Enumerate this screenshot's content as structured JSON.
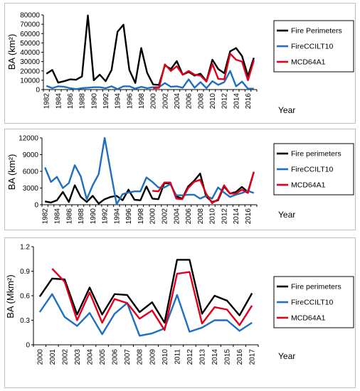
{
  "chart_data": [
    {
      "type": "line",
      "ylabel": "BA (km²)",
      "xlabel": "Year",
      "ylim": [
        0,
        80000
      ],
      "yticks": [
        0,
        10000,
        20000,
        30000,
        40000,
        50000,
        60000,
        70000,
        80000
      ],
      "ytick_labels": [
        "0",
        "10000",
        "20000",
        "30000",
        "40000",
        "50000",
        "60000",
        "70000",
        "80000"
      ],
      "xtick_labels": [
        "1982",
        "1984",
        "1986",
        "1988",
        "1990",
        "1992",
        "1994",
        "1996",
        "1998",
        "2000",
        "2002",
        "2004",
        "2006",
        "2008",
        "2010",
        "2012",
        "2014",
        "2016"
      ],
      "x": [
        1982,
        1983,
        1984,
        1985,
        1986,
        1987,
        1988,
        1989,
        1990,
        1991,
        1992,
        1993,
        1994,
        1995,
        1996,
        1997,
        1998,
        1999,
        2000,
        2001,
        2002,
        2003,
        2004,
        2005,
        2006,
        2007,
        2008,
        2009,
        2010,
        2011,
        2012,
        2013,
        2014,
        2015,
        2016,
        2017
      ],
      "grid": false,
      "legend_placement": "right",
      "series": [
        {
          "name": "Fire Perimeters",
          "color": "#000000",
          "values": [
            17000,
            21000,
            7500,
            9000,
            11000,
            10500,
            14000,
            79500,
            10000,
            16000,
            9000,
            21000,
            62000,
            69500,
            21000,
            7000,
            44500,
            18000,
            5500,
            5000,
            26000,
            22000,
            30500,
            16000,
            19000,
            15000,
            17000,
            9000,
            32000,
            22000,
            17500,
            41000,
            44500,
            36000,
            14500,
            34000
          ]
        },
        {
          "name": "FireCCILT10",
          "color": "#1f6fc0",
          "values": [
            4000,
            1500,
            3500,
            3000,
            1500,
            500,
            1500,
            2000,
            2500,
            2500,
            1500,
            3500,
            500,
            3500,
            3500,
            1000,
            3000,
            1500,
            2500,
            2500,
            7000,
            3000,
            3500,
            2000,
            11000,
            2000,
            8000,
            1500,
            9000,
            5000,
            8000,
            20000,
            3500,
            8500,
            1000,
            1000
          ]
        },
        {
          "name": "MCD64A1",
          "color": "#e0001b",
          "values": [
            null,
            null,
            null,
            null,
            null,
            null,
            null,
            null,
            null,
            null,
            null,
            null,
            null,
            null,
            null,
            null,
            null,
            null,
            1500,
            2000,
            27000,
            20000,
            25000,
            16000,
            20000,
            16000,
            15000,
            8500,
            27500,
            11500,
            11000,
            38500,
            32000,
            30000,
            10000,
            31500
          ]
        }
      ]
    },
    {
      "type": "line",
      "ylabel": "BA (km²)",
      "xlabel": "Year",
      "ylim": [
        0,
        12000
      ],
      "yticks": [
        0,
        3000,
        6000,
        9000,
        12000
      ],
      "ytick_labels": [
        "0",
        "3000",
        "6000",
        "9000",
        "12000"
      ],
      "xtick_labels": [
        "1982",
        "1984",
        "1986",
        "1988",
        "1990",
        "1992",
        "1994",
        "1996",
        "1998",
        "2000",
        "2002",
        "2004",
        "2006",
        "2008",
        "2010",
        "2012",
        "2014",
        "2016"
      ],
      "x": [
        1982,
        1983,
        1984,
        1985,
        1986,
        1987,
        1988,
        1989,
        1990,
        1991,
        1992,
        1993,
        1994,
        1995,
        1996,
        1997,
        1998,
        1999,
        2000,
        2001,
        2002,
        2003,
        2004,
        2005,
        2006,
        2007,
        2008,
        2009,
        2010,
        2011,
        2012,
        2013,
        2014,
        2015,
        2016,
        2017
      ],
      "grid": false,
      "legend_placement": "right",
      "series": [
        {
          "name": "Fire perimeters",
          "color": "#000000",
          "values": [
            600,
            400,
            800,
            2300,
            500,
            3500,
            1400,
            500,
            1600,
            200,
            1000,
            1400,
            1600,
            800,
            2700,
            900,
            800,
            3300,
            1100,
            1000,
            3900,
            3800,
            1500,
            1100,
            3300,
            4300,
            5600,
            1500,
            500,
            800,
            3300,
            2000,
            2300,
            3200,
            2300,
            5900
          ]
        },
        {
          "name": "FireCCILT10",
          "color": "#1f6fc0",
          "values": [
            6700,
            4100,
            5000,
            3000,
            3900,
            7100,
            5100,
            1000,
            3500,
            5500,
            12000,
            6000,
            100,
            1900,
            2200,
            2400,
            2400,
            4900,
            4100,
            3100,
            3100,
            3700,
            1700,
            1700,
            1800,
            1800,
            1100,
            1600,
            1100,
            3100,
            2200,
            1400,
            1800,
            2100,
            2500,
            2100
          ]
        },
        {
          "name": "MCD64A1",
          "color": "#e0001b",
          "values": [
            null,
            null,
            null,
            null,
            null,
            null,
            null,
            null,
            null,
            null,
            null,
            null,
            null,
            null,
            null,
            null,
            null,
            null,
            2500,
            2400,
            4000,
            4000,
            1100,
            1000,
            3000,
            4100,
            4500,
            2000,
            300,
            1000,
            3500,
            2000,
            2000,
            2700,
            2100,
            5900
          ]
        }
      ]
    },
    {
      "type": "line",
      "ylabel": "BA (Mkm²)",
      "xlabel": "Year",
      "ylim": [
        0,
        1.2
      ],
      "yticks": [
        0,
        0.3,
        0.6,
        0.9,
        1.2
      ],
      "ytick_labels": [
        "0",
        "0.3",
        "0.6",
        "0.9",
        "1.2"
      ],
      "xtick_labels": [
        "2000",
        "2001",
        "2002",
        "2003",
        "2004",
        "2005",
        "2006",
        "2007",
        "2008",
        "2009",
        "2010",
        "2011",
        "2012",
        "2013",
        "2014",
        "2015",
        "2016",
        "2017"
      ],
      "x": [
        2000,
        2001,
        2002,
        2003,
        2004,
        2005,
        2006,
        2007,
        2008,
        2009,
        2010,
        2011,
        2012,
        2013,
        2014,
        2015,
        2016,
        2017
      ],
      "grid": false,
      "legend_placement": "right",
      "series": [
        {
          "name": "Fire perimeters",
          "color": "#000000",
          "values": [
            0.59,
            0.81,
            0.8,
            0.37,
            0.7,
            0.37,
            0.62,
            0.61,
            0.4,
            0.52,
            0.27,
            1.04,
            1.04,
            0.38,
            0.6,
            0.54,
            0.36,
            0.63
          ]
        },
        {
          "name": "FireCCILT10",
          "color": "#1f6fc0",
          "values": [
            0.4,
            0.62,
            0.34,
            0.23,
            0.39,
            0.13,
            0.38,
            0.51,
            0.11,
            0.14,
            0.2,
            0.61,
            0.16,
            0.21,
            0.3,
            0.3,
            0.17,
            0.27
          ]
        },
        {
          "name": "MCD64A1",
          "color": "#e0001b",
          "values": [
            null,
            0.93,
            0.77,
            0.3,
            0.64,
            0.27,
            0.56,
            0.51,
            0.32,
            0.42,
            0.18,
            0.87,
            0.89,
            0.26,
            0.46,
            0.43,
            0.24,
            0.48
          ]
        }
      ]
    }
  ]
}
